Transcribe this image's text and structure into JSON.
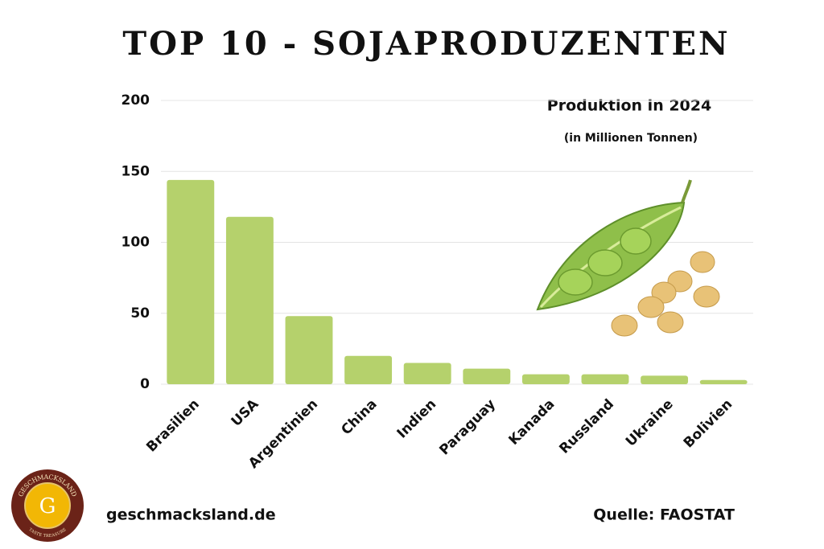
{
  "chart_data": {
    "type": "bar",
    "title": "TOP 10 - SOJAPRODUZENTEN",
    "subtitle": "Produktion in 2024",
    "unit_note": "(in Millionen Tonnen)",
    "categories": [
      "Brasilien",
      "USA",
      "Argentinien",
      "China",
      "Indien",
      "Paraguay",
      "Kanada",
      "Russland",
      "Ukraine",
      "Bolivien"
    ],
    "values": [
      144,
      118,
      48,
      20,
      15,
      11,
      7,
      7,
      6,
      3
    ],
    "color": "#b5d16c",
    "ylim": [
      0,
      200
    ],
    "yticks": [
      0,
      50,
      100,
      150,
      200
    ],
    "grid": true
  },
  "footer": {
    "website": "geschmacksland.de",
    "source": "Quelle: FAOSTAT"
  },
  "logo": {
    "top": "GESCHMACKSLAND",
    "letter": "G",
    "bottom": "TASTE TREASURE"
  }
}
